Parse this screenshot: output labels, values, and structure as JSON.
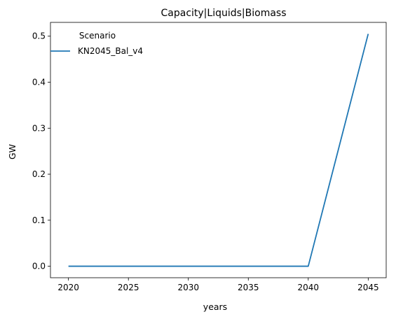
{
  "chart_data": {
    "type": "line",
    "title": "Capacity|Liquids|Biomass",
    "xlabel": "years",
    "ylabel": "GW",
    "xlim": [
      2018.5,
      2046.5
    ],
    "ylim": [
      -0.025,
      0.53
    ],
    "xticks": [
      2020,
      2025,
      2030,
      2035,
      2040,
      2045
    ],
    "yticks": [
      0.0,
      0.1,
      0.2,
      0.3,
      0.4,
      0.5
    ],
    "ytick_labels": [
      "0.0",
      "0.1",
      "0.2",
      "0.3",
      "0.4",
      "0.5"
    ],
    "grid": false,
    "legend": {
      "title": "Scenario",
      "placement": "top-left"
    },
    "series": [
      {
        "name": "KN2045_Bal_v4",
        "color": "#1f77b4",
        "x": [
          2020,
          2025,
          2030,
          2035,
          2040,
          2045
        ],
        "y": [
          0.0,
          0.0,
          0.0,
          0.0,
          0.0,
          0.505
        ]
      }
    ]
  }
}
